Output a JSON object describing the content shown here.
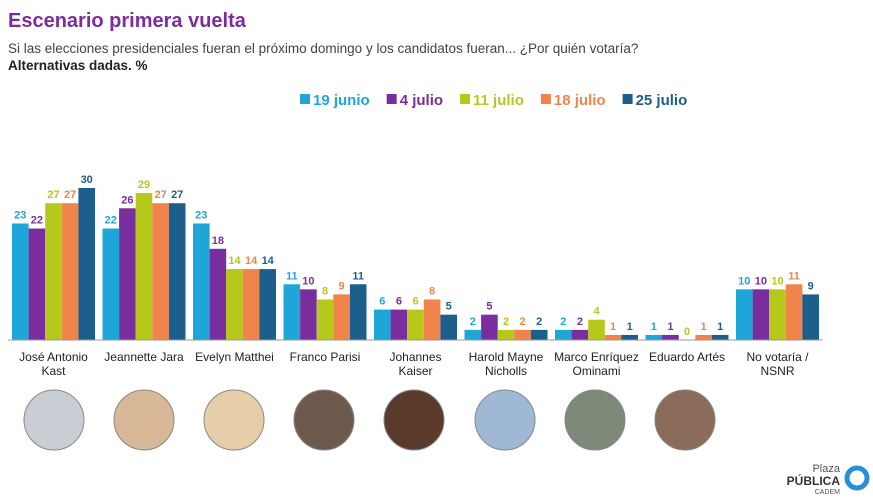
{
  "chart_data": {
    "type": "bar",
    "title": "Escenario primera vuelta",
    "subtitle": "Si las elecciones presidenciales fueran el próximo domingo y los candidatos fueran... ¿Por quién votaría?",
    "note": "Alternativas dadas. %",
    "categories": [
      "José Antonio\nKast",
      "Jeannette Jara",
      "Evelyn Matthei",
      "Franco Parisi",
      "Johannes\nKaiser",
      "Harold Mayne\nNicholls",
      "Marco Enríquez\nOminami",
      "Eduardo Artés",
      "No votaría /\nNSNR"
    ],
    "series": [
      {
        "name": "19 junio",
        "color": "#1ea6d9",
        "values": [
          23,
          22,
          23,
          11,
          6,
          2,
          2,
          1,
          10
        ]
      },
      {
        "name": "4 julio",
        "color": "#7a2e9e",
        "values": [
          22,
          26,
          18,
          10,
          6,
          5,
          2,
          1,
          10
        ]
      },
      {
        "name": "11 julio",
        "color": "#b6c81a",
        "values": [
          27,
          29,
          14,
          8,
          6,
          2,
          4,
          0,
          10
        ]
      },
      {
        "name": "18 julio",
        "color": "#f0844a",
        "values": [
          27,
          27,
          14,
          9,
          8,
          2,
          1,
          1,
          11
        ]
      },
      {
        "name": "25 julio",
        "color": "#1d5f8c",
        "values": [
          30,
          27,
          14,
          11,
          5,
          2,
          1,
          1,
          9
        ]
      }
    ],
    "logo": {
      "line1": "Plaza",
      "line2": "PÚBLICA",
      "line3": "CADEM"
    }
  }
}
